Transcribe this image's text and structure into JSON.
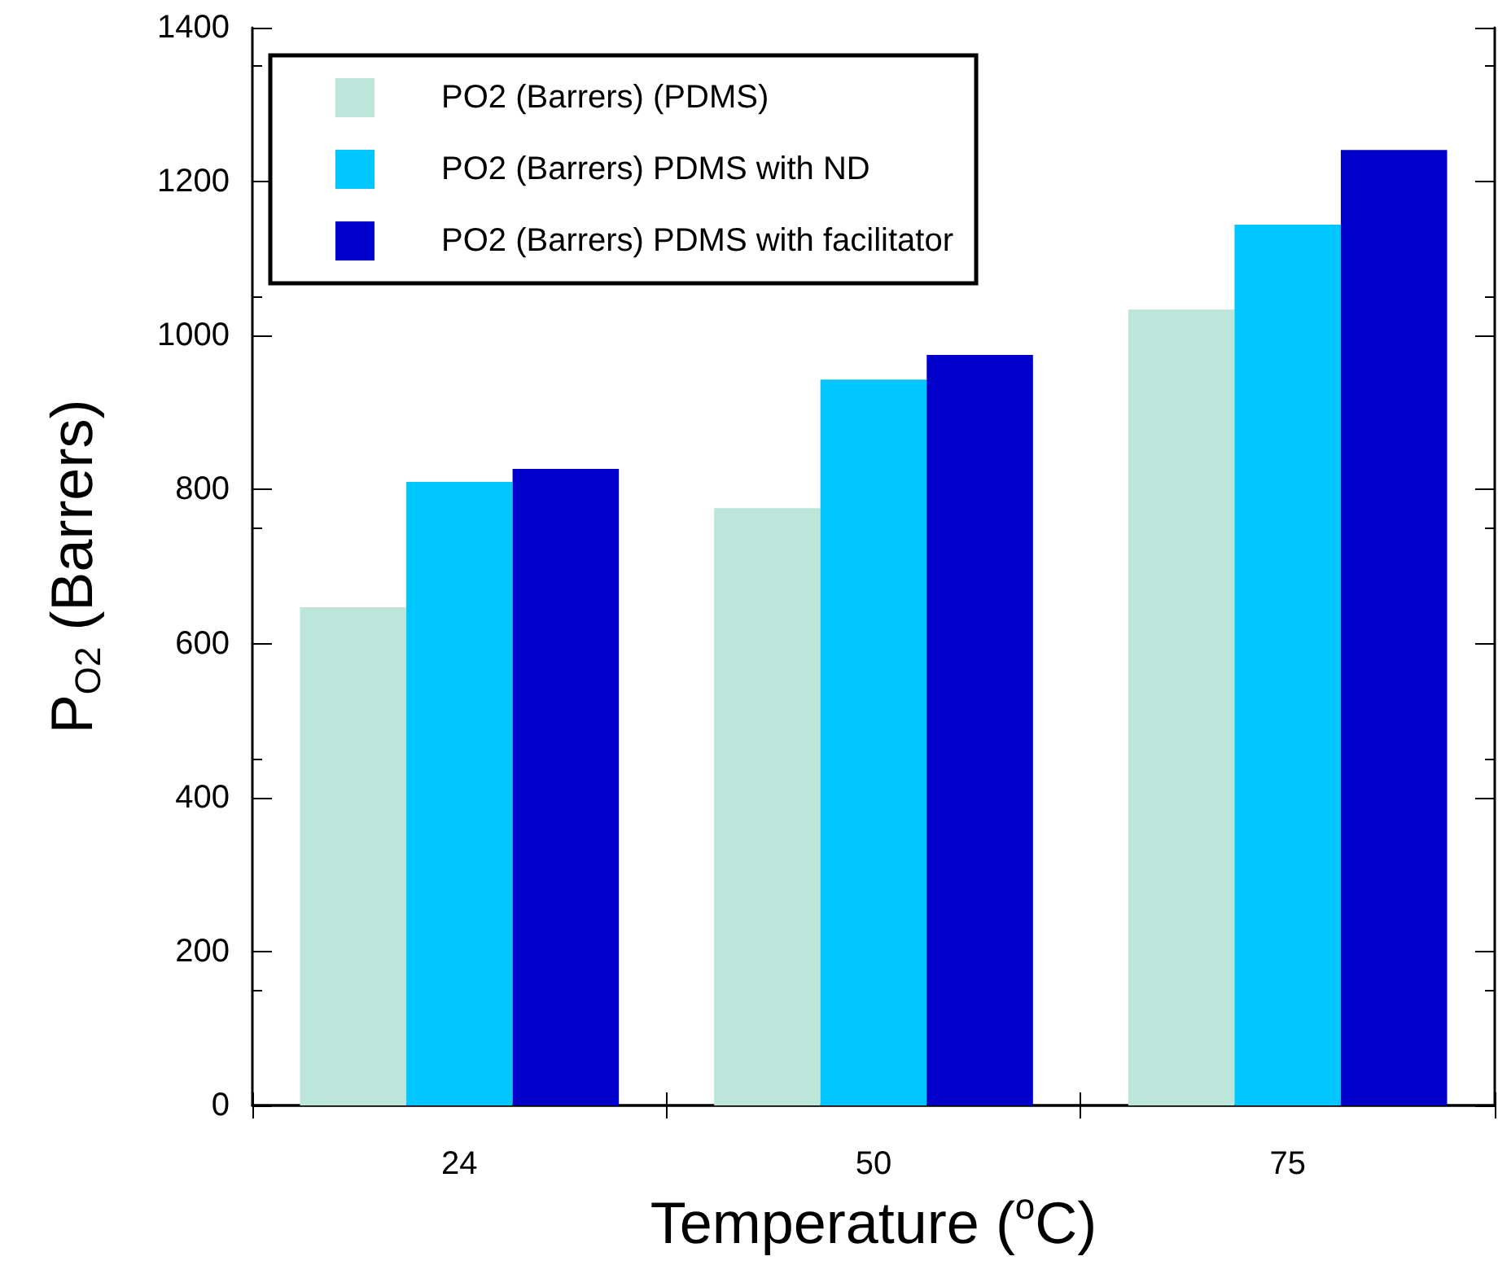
{
  "chart_data": {
    "type": "bar",
    "xlabel": "Temperature ($^{o}$C)",
    "ylabel": "P$_{O2}$ (Barrers)",
    "categories": [
      "24",
      "50",
      "75"
    ],
    "series": [
      {
        "name": "PO2 (Barrers) (PDMS)",
        "color": "#bbe6d9",
        "values": [
          647,
          776,
          1034
        ]
      },
      {
        "name": "PO2 (Barrers) PDMS with ND",
        "color": "#00c8ff",
        "values": [
          810,
          943,
          1144
        ]
      },
      {
        "name": "PO2 (Barrers) PDMS with facilitator",
        "color": "#0000cc",
        "values": [
          827,
          975,
          1241
        ]
      }
    ],
    "ylim": [
      0,
      1400
    ],
    "yticks": [
      0,
      200,
      400,
      600,
      800,
      1000,
      1200,
      1400
    ],
    "grid": false,
    "legend": "top left"
  }
}
